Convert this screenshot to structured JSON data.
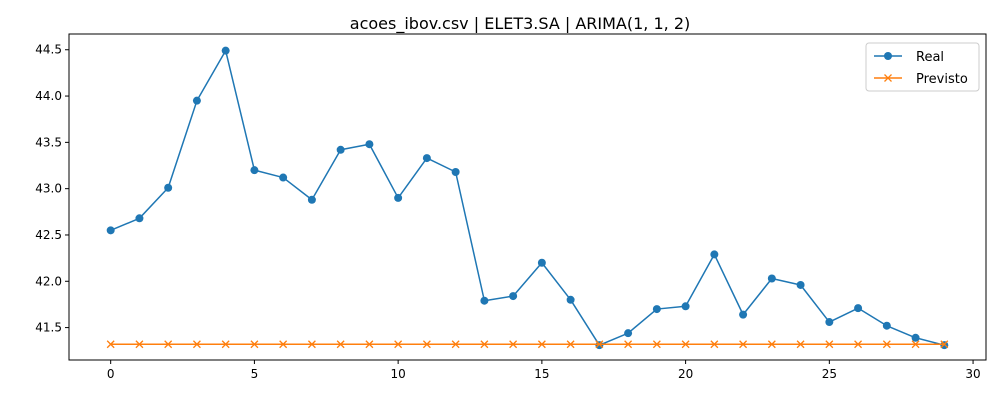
{
  "chart_data": {
    "type": "line",
    "title": "acoes_ibov.csv | ELET3.SA | ARIMA(1, 1, 2)",
    "xlabel": "",
    "ylabel": "",
    "xlim": [
      -1.45,
      30.45
    ],
    "ylim": [
      41.15,
      44.67
    ],
    "x_ticks": [
      0,
      5,
      10,
      15,
      20,
      25,
      30
    ],
    "y_ticks": [
      41.5,
      42.0,
      42.5,
      43.0,
      43.5,
      44.0,
      44.5
    ],
    "x_tick_labels": [
      "0",
      "5",
      "10",
      "15",
      "20",
      "25",
      "30"
    ],
    "y_tick_labels": [
      "41.5",
      "42.0",
      "42.5",
      "43.0",
      "43.5",
      "44.0",
      "44.5"
    ],
    "grid": false,
    "legend_position": "top-right",
    "x": [
      0,
      1,
      2,
      3,
      4,
      5,
      6,
      7,
      8,
      9,
      10,
      11,
      12,
      13,
      14,
      15,
      16,
      17,
      18,
      19,
      20,
      21,
      22,
      23,
      24,
      25,
      26,
      27,
      28,
      29
    ],
    "series": [
      {
        "name": "Real",
        "color": "#1f77b4",
        "marker": "circle",
        "values": [
          42.55,
          42.68,
          43.01,
          43.95,
          44.49,
          43.2,
          43.12,
          42.88,
          43.42,
          43.48,
          42.9,
          43.33,
          43.18,
          41.79,
          41.84,
          42.2,
          41.8,
          41.31,
          41.44,
          41.7,
          41.73,
          42.29,
          41.64,
          42.03,
          41.96,
          41.56,
          41.71,
          41.52,
          41.39,
          41.31
        ]
      },
      {
        "name": "Previsto",
        "color": "#ff7f0e",
        "marker": "x",
        "values": [
          41.32,
          41.32,
          41.32,
          41.32,
          41.32,
          41.32,
          41.32,
          41.32,
          41.32,
          41.32,
          41.32,
          41.32,
          41.32,
          41.32,
          41.32,
          41.32,
          41.32,
          41.32,
          41.32,
          41.32,
          41.32,
          41.32,
          41.32,
          41.32,
          41.32,
          41.32,
          41.32,
          41.32,
          41.32,
          41.32
        ]
      }
    ]
  }
}
